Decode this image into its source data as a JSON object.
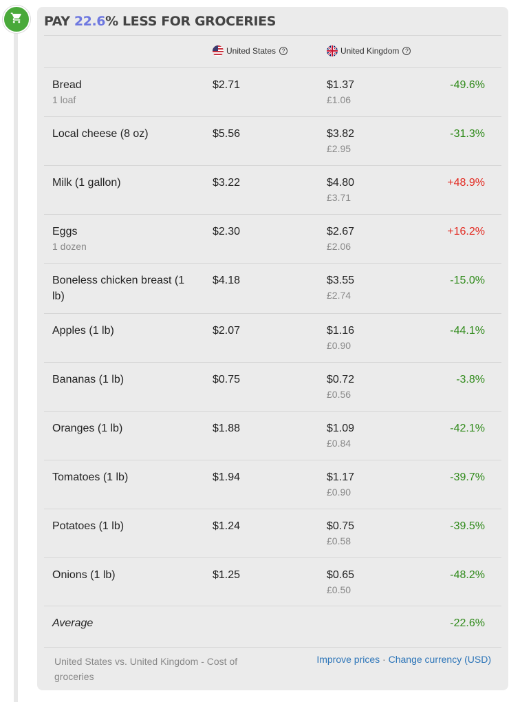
{
  "title": {
    "prefix": "PAY ",
    "percent": "22.6",
    "suffix": "% LESS FOR GROCERIES"
  },
  "icons": {
    "cart": "shopping-cart-icon",
    "help": "help-circle-icon"
  },
  "colors": {
    "accent": "#6e78e0",
    "cart_bg": "#49a93a",
    "negative": "#2f8a1a",
    "positive": "#e2281f",
    "link": "#2b74b8"
  },
  "columns": {
    "us": {
      "label": "United States",
      "flag": "us-flag-icon"
    },
    "uk": {
      "label": "United Kingdom",
      "flag": "uk-flag-icon"
    }
  },
  "rows": [
    {
      "name": "Bread",
      "sub": "1 loaf",
      "us": "$2.71",
      "uk": "$1.37",
      "gbp": "£1.06",
      "diff": "-49.6%",
      "sign": "neg"
    },
    {
      "name": "Local cheese (8 oz)",
      "sub": "",
      "us": "$5.56",
      "uk": "$3.82",
      "gbp": "£2.95",
      "diff": "-31.3%",
      "sign": "neg"
    },
    {
      "name": "Milk (1 gallon)",
      "sub": "",
      "us": "$3.22",
      "uk": "$4.80",
      "gbp": "£3.71",
      "diff": "+48.9%",
      "sign": "pos"
    },
    {
      "name": "Eggs",
      "sub": "1 dozen",
      "us": "$2.30",
      "uk": "$2.67",
      "gbp": "£2.06",
      "diff": "+16.2%",
      "sign": "pos"
    },
    {
      "name": "Boneless chicken breast (1 lb)",
      "sub": "",
      "us": "$4.18",
      "uk": "$3.55",
      "gbp": "£2.74",
      "diff": "-15.0%",
      "sign": "neg"
    },
    {
      "name": "Apples (1 lb)",
      "sub": "",
      "us": "$2.07",
      "uk": "$1.16",
      "gbp": "£0.90",
      "diff": "-44.1%",
      "sign": "neg"
    },
    {
      "name": "Bananas (1 lb)",
      "sub": "",
      "us": "$0.75",
      "uk": "$0.72",
      "gbp": "£0.56",
      "diff": "-3.8%",
      "sign": "neg"
    },
    {
      "name": "Oranges (1 lb)",
      "sub": "",
      "us": "$1.88",
      "uk": "$1.09",
      "gbp": "£0.84",
      "diff": "-42.1%",
      "sign": "neg"
    },
    {
      "name": "Tomatoes (1 lb)",
      "sub": "",
      "us": "$1.94",
      "uk": "$1.17",
      "gbp": "£0.90",
      "diff": "-39.7%",
      "sign": "neg"
    },
    {
      "name": "Potatoes (1 lb)",
      "sub": "",
      "us": "$1.24",
      "uk": "$0.75",
      "gbp": "£0.58",
      "diff": "-39.5%",
      "sign": "neg"
    },
    {
      "name": "Onions (1 lb)",
      "sub": "",
      "us": "$1.25",
      "uk": "$0.65",
      "gbp": "£0.50",
      "diff": "-48.2%",
      "sign": "neg"
    }
  ],
  "average": {
    "label": "Average",
    "diff": "-22.6%"
  },
  "footer": {
    "caption": "United States vs. United Kingdom - Cost of groceries",
    "improve": "Improve prices",
    "separator": "·",
    "currency": "Change currency (USD)"
  }
}
